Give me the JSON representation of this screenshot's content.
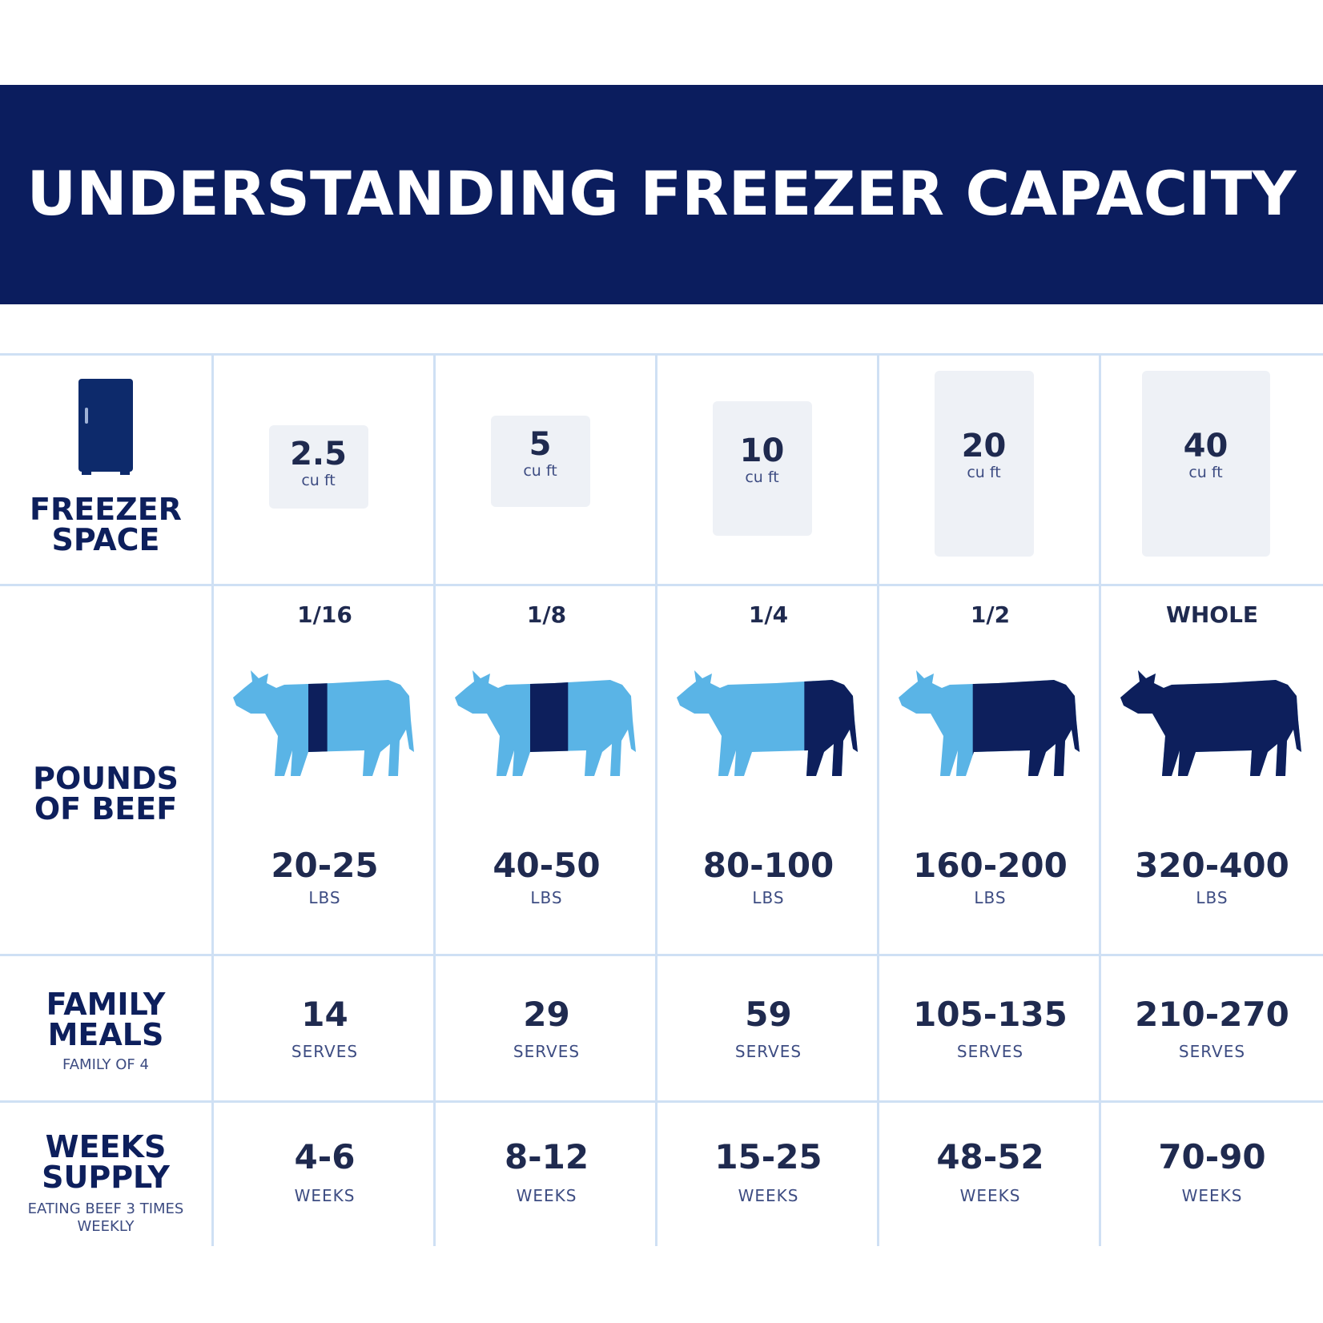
{
  "title": "UNDERSTANDING FREEZER CAPACITY",
  "colors": {
    "banner": "#0b1d5e",
    "cow_light": "#5ab4e6",
    "cow_dark": "#0d1f5c",
    "grid": "#cfe0f4"
  },
  "row_headers": {
    "freezer_space": "FREEZER SPACE",
    "pounds_of_beef": "POUNDS OF BEEF",
    "family_meals": "FAMILY MEALS",
    "family_meals_sub": "FAMILY OF 4",
    "weeks_supply": "WEEKS SUPPLY",
    "weeks_supply_sub": "EATING BEEF 3 TIMES WEEKLY"
  },
  "columns": [
    {
      "cu_ft": "2.5",
      "cu_unit": "cu ft",
      "portion": "1/16",
      "share": 0.0625,
      "lbs": "20-25",
      "lbs_unit": "LBS",
      "meals": "14",
      "meals_unit": "SERVES",
      "weeks": "4-6",
      "weeks_unit": "WEEKS"
    },
    {
      "cu_ft": "5",
      "cu_unit": "cu ft",
      "portion": "1/8",
      "share": 0.125,
      "lbs": "40-50",
      "lbs_unit": "LBS",
      "meals": "29",
      "meals_unit": "SERVES",
      "weeks": "8-12",
      "weeks_unit": "WEEKS"
    },
    {
      "cu_ft": "10",
      "cu_unit": "cu ft",
      "portion": "1/4",
      "share": 0.25,
      "lbs": "80-100",
      "lbs_unit": "LBS",
      "meals": "59",
      "meals_unit": "SERVES",
      "weeks": "15-25",
      "weeks_unit": "WEEKS"
    },
    {
      "cu_ft": "20",
      "cu_unit": "cu ft",
      "portion": "1/2",
      "share": 0.5,
      "lbs": "160-200",
      "lbs_unit": "LBS",
      "meals": "105-135",
      "meals_unit": "SERVES",
      "weeks": "48-52",
      "weeks_unit": "WEEKS"
    },
    {
      "cu_ft": "40",
      "cu_unit": "cu ft",
      "portion": "WHOLE",
      "share": 1,
      "lbs": "320-400",
      "lbs_unit": "LBS",
      "meals": "210-270",
      "meals_unit": "SERVES",
      "weeks": "70-90",
      "weeks_unit": "WEEKS"
    }
  ],
  "icons": {
    "header": "freezer-icon",
    "cow": "cow-icon"
  }
}
